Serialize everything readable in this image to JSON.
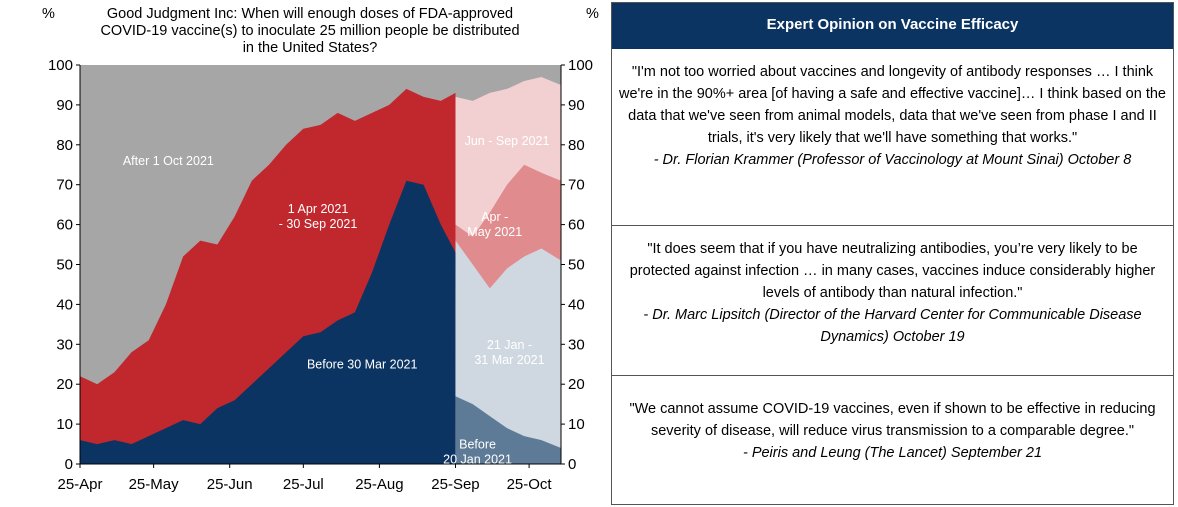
{
  "chart": {
    "title_line1": "Good Judgment Inc: When will enough doses of FDA-approved",
    "title_line2": "COVID-19 vaccine(s) to inoculate 25 million people be distributed",
    "title_line3": "in the United States?",
    "unit_left": "%",
    "unit_right": "%"
  },
  "panel": {
    "title": "Expert Opinion on Vaccine Efficacy",
    "quotes": [
      {
        "text": "\"I'm not too worried about vaccines and longevity of antibody responses … I think we're in the 90%+ area [of having a safe and effective vaccine]… I think based on the data that we've seen from animal models, data that we've seen from phase I and II trials, it's very likely that we'll have something that works.\"",
        "source": "- Dr. Florian Krammer (Professor of Vaccinology at Mount Sinai) October 8"
      },
      {
        "text": "\"It does seem that if you have neutralizing antibodies, you’re very likely to be protected against infection … in many cases, vaccines induce considerably higher levels of antibody than natural infection.\"",
        "source": "- Dr. Marc Lipsitch (Director of the Harvard Center for Communicable Disease Dynamics) October 19"
      },
      {
        "text": "\"We cannot assume COVID-19 vaccines, even if shown to be effective in reducing severity of disease, will reduce virus transmission to a comparable degree.\"",
        "source": "- Peiris and Leung (The Lancet) September 21"
      }
    ]
  },
  "chart_data": {
    "type": "area",
    "title": "Good Judgment Inc: When will enough doses of FDA-approved COVID-19 vaccine(s) to inoculate 25 million people be distributed in the United States?",
    "ylabel": "%",
    "ylim": [
      0,
      100
    ],
    "yticks": [
      0,
      10,
      20,
      30,
      40,
      50,
      60,
      70,
      80,
      90,
      100
    ],
    "xlim": [
      "2020-04-25",
      "2020-11-07"
    ],
    "x_tick_labels": [
      "25-Apr",
      "25-May",
      "25-Jun",
      "25-Jul",
      "25-Aug",
      "25-Sep",
      "25-Oct"
    ],
    "x_tick_dates": [
      "2020-04-25",
      "2020-05-25",
      "2020-06-25",
      "2020-07-25",
      "2020-08-25",
      "2020-09-25",
      "2020-10-25"
    ],
    "grid": false,
    "stacking": "cumulative",
    "colors": {
      "before_30_mar": "#0b3463",
      "apr_sep_2021": "#c0282d",
      "after_1_oct": "#a6a6a6",
      "before_20_jan": "#5d7a96",
      "jan_mar_2021": "#cfd8e1",
      "apr_may_2021": "#e08b8e",
      "jun_sep_2021": "#f2d0d1"
    },
    "periods": [
      {
        "range": [
          "2020-04-25",
          "2020-09-25"
        ],
        "x": [
          "2020-04-25",
          "2020-05-02",
          "2020-05-09",
          "2020-05-16",
          "2020-05-23",
          "2020-05-30",
          "2020-06-06",
          "2020-06-13",
          "2020-06-20",
          "2020-06-27",
          "2020-07-04",
          "2020-07-11",
          "2020-07-18",
          "2020-07-25",
          "2020-08-01",
          "2020-08-08",
          "2020-08-15",
          "2020-08-22",
          "2020-08-29",
          "2020-09-05",
          "2020-09-12",
          "2020-09-19",
          "2020-09-25"
        ],
        "series": [
          {
            "label": "Before 30 Mar 2021",
            "cumulative": [
              6,
              5,
              6,
              5,
              7,
              9,
              11,
              10,
              14,
              16,
              20,
              24,
              28,
              32,
              33,
              36,
              38,
              48,
              60,
              71,
              70,
              60,
              53
            ]
          },
          {
            "label": "1 Apr 2021 - 30 Sep 2021",
            "cumulative": [
              22,
              20,
              23,
              28,
              31,
              40,
              52,
              56,
              55,
              62,
              71,
              75,
              80,
              84,
              85,
              88,
              86,
              88,
              90,
              94,
              92,
              91,
              93
            ]
          },
          {
            "label": "After 1 Oct 2021",
            "cumulative": [
              100,
              100,
              100,
              100,
              100,
              100,
              100,
              100,
              100,
              100,
              100,
              100,
              100,
              100,
              100,
              100,
              100,
              100,
              100,
              100,
              100,
              100,
              100
            ]
          }
        ]
      },
      {
        "range": [
          "2020-09-25",
          "2020-11-07"
        ],
        "x": [
          "2020-09-25",
          "2020-10-02",
          "2020-10-09",
          "2020-10-16",
          "2020-10-23",
          "2020-10-30",
          "2020-11-07"
        ],
        "series": [
          {
            "label": "Before 20 Jan 2021",
            "cumulative": [
              17,
              15,
              12,
              9,
              7,
              6,
              4
            ]
          },
          {
            "label": "21 Jan - 31 Mar 2021",
            "cumulative": [
              56,
              50,
              44,
              49,
              52,
              54,
              51
            ]
          },
          {
            "label": "Apr - May 2021",
            "cumulative": [
              60,
              57,
              63,
              70,
              75,
              73,
              71
            ]
          },
          {
            "label": "Jun - Sep 2021",
            "cumulative": [
              92,
              91,
              93,
              94,
              96,
              97,
              95
            ]
          },
          {
            "label": "After 1 Oct 2021",
            "cumulative": [
              100,
              100,
              100,
              100,
              100,
              100,
              100
            ]
          }
        ]
      }
    ],
    "area_labels": [
      {
        "lines": [
          "After 1 Oct 2021"
        ],
        "date": "2020-05-31",
        "value": 76
      },
      {
        "lines": [
          "1 Apr 2021",
          "- 30 Sep 2021"
        ],
        "date": "2020-07-31",
        "value": 62
      },
      {
        "lines": [
          "Before  30 Mar 2021"
        ],
        "date": "2020-08-18",
        "value": 25
      },
      {
        "lines": [
          "Jun - Sep 2021"
        ],
        "date": "2020-10-16",
        "value": 81
      },
      {
        "lines": [
          "Apr -",
          "May 2021"
        ],
        "date": "2020-10-11",
        "value": 60
      },
      {
        "lines": [
          "21 Jan -",
          "31 Mar 2021"
        ],
        "date": "2020-10-17",
        "value": 28
      },
      {
        "lines": [
          "Before",
          "20 Jan 2021"
        ],
        "date": "2020-10-04",
        "value": 3
      }
    ]
  }
}
